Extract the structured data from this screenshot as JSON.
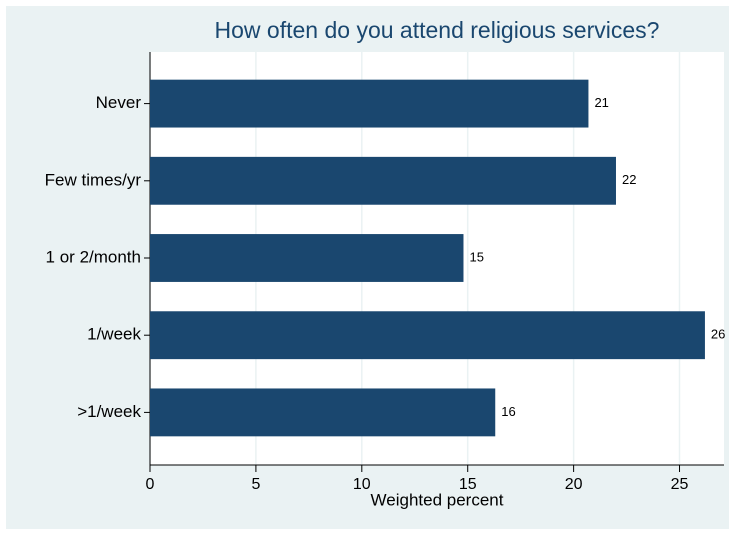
{
  "chart_data": {
    "type": "bar",
    "orientation": "horizontal",
    "title": "How often do you attend religious services?",
    "x_label": "Weighted percent",
    "categories": [
      "Never",
      "Few times/yr",
      "1 or 2/month",
      "1/week",
      ">1/week"
    ],
    "values": [
      20.7,
      22.0,
      14.8,
      26.2,
      16.3
    ],
    "value_labels": [
      "21",
      "22",
      "15",
      "26",
      "16"
    ],
    "color": "#1a476f",
    "xlim": [
      0,
      27.1
    ],
    "xticks": [
      0,
      5,
      10,
      15,
      20,
      25
    ],
    "grid": true
  }
}
